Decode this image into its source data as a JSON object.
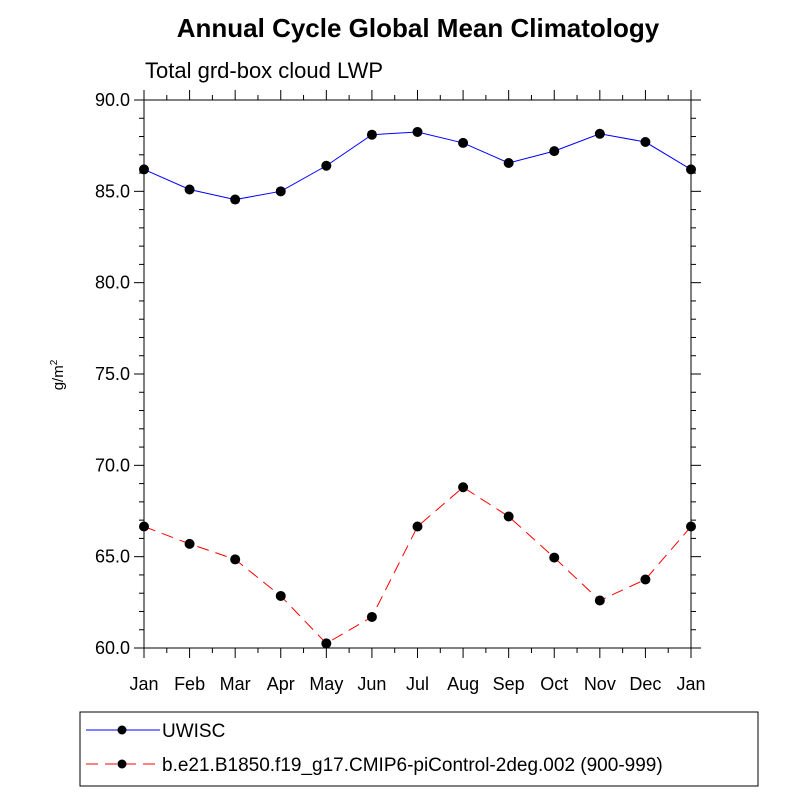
{
  "chart_data": {
    "type": "line",
    "title": "Annual Cycle Global Mean Climatology",
    "subtitle": "Total grd-box cloud LWP",
    "xlabel": "",
    "ylabel": "g/m",
    "ylabel_superscript": "2",
    "categories": [
      "Jan",
      "Feb",
      "Mar",
      "Apr",
      "May",
      "Jun",
      "Jul",
      "Aug",
      "Sep",
      "Oct",
      "Nov",
      "Dec",
      "Jan"
    ],
    "ylim": [
      60,
      90
    ],
    "yticks": [
      "60.0",
      "65.0",
      "70.0",
      "75.0",
      "80.0",
      "85.0",
      "90.0"
    ],
    "series": [
      {
        "name": "UWISC",
        "color": "#0000ff",
        "dash": "solid",
        "values": [
          86.2,
          85.1,
          84.55,
          85.0,
          86.4,
          88.1,
          88.25,
          87.65,
          86.55,
          87.2,
          88.15,
          87.7,
          86.2
        ]
      },
      {
        "name": "b.e21.B1850.f19_g17.CMIP6-piControl-2deg.002 (900-999)",
        "color": "#ff0000",
        "dash": "dashed",
        "values": [
          66.65,
          65.7,
          64.85,
          62.85,
          60.25,
          61.7,
          66.65,
          68.8,
          67.2,
          64.95,
          62.6,
          63.75,
          66.65
        ]
      }
    ],
    "legend_position": "bottom-left"
  }
}
